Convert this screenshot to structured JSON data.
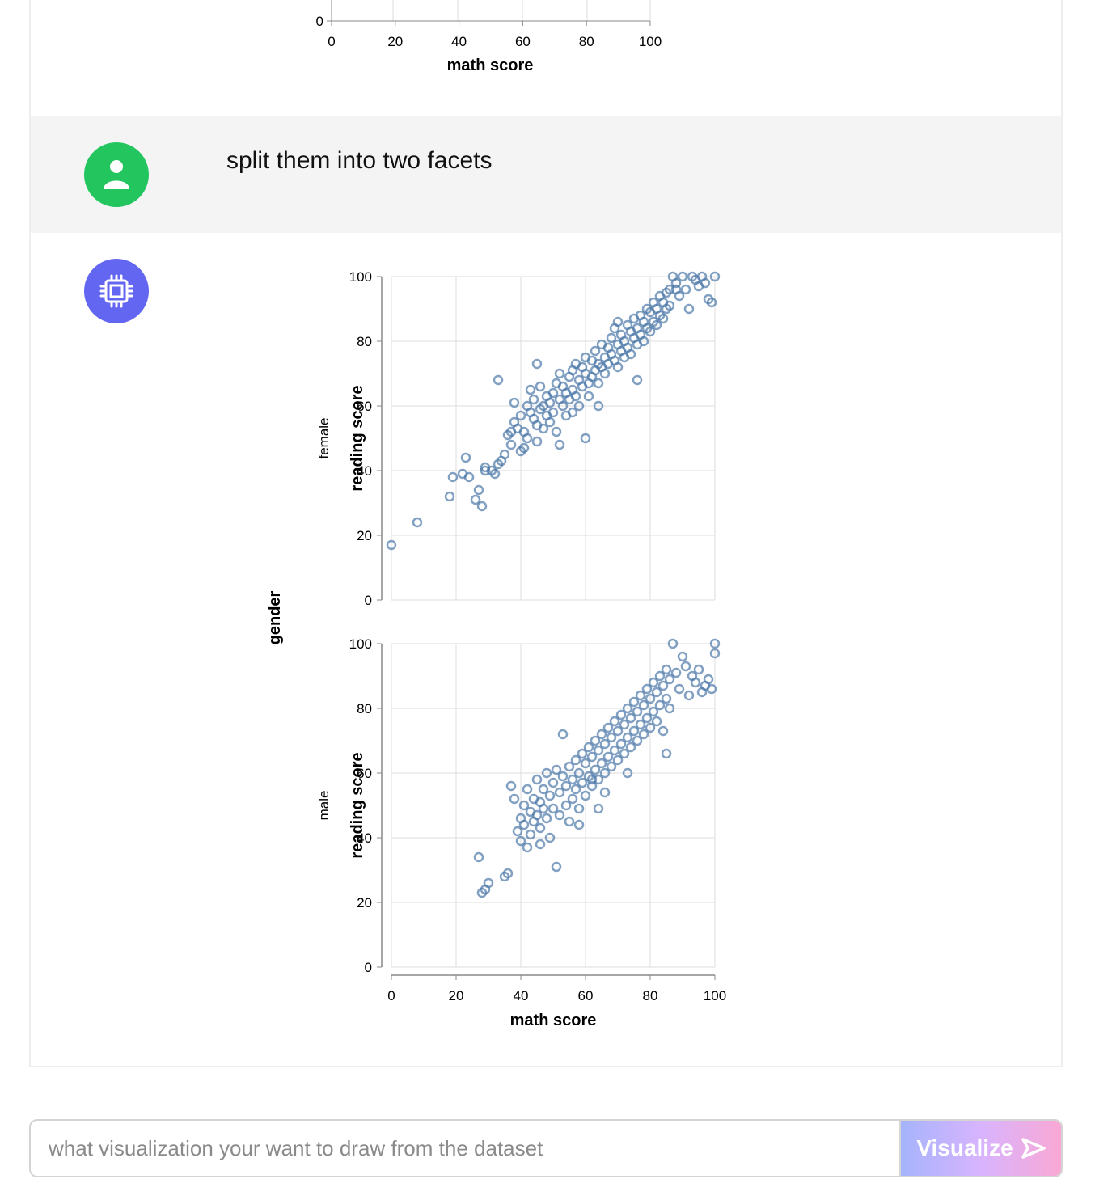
{
  "previous_chart": {
    "y_tick": "0",
    "x_ticks": [
      "0",
      "20",
      "40",
      "60",
      "80",
      "100"
    ],
    "x_label": "math score"
  },
  "user_message": {
    "text": "split them into two facets"
  },
  "chart_data": {
    "type": "scatter",
    "facet_label": "gender",
    "x_label": "math score",
    "y_label": "reading score",
    "xlim": [
      0,
      100
    ],
    "ylim": [
      0,
      100
    ],
    "x_ticks": [
      0,
      20,
      40,
      60,
      80,
      100
    ],
    "y_ticks": [
      0,
      20,
      40,
      60,
      80,
      100
    ],
    "grid": true,
    "mark_color": "#4c78a8",
    "facets": [
      {
        "name": "female",
        "points": [
          [
            0,
            17
          ],
          [
            8,
            24
          ],
          [
            18,
            32
          ],
          [
            19,
            38
          ],
          [
            22,
            39
          ],
          [
            23,
            44
          ],
          [
            24,
            38
          ],
          [
            26,
            31
          ],
          [
            27,
            34
          ],
          [
            28,
            29
          ],
          [
            29,
            40
          ],
          [
            29,
            41
          ],
          [
            31,
            40
          ],
          [
            32,
            39
          ],
          [
            33,
            42
          ],
          [
            34,
            43
          ],
          [
            35,
            45
          ],
          [
            36,
            51
          ],
          [
            37,
            48
          ],
          [
            37,
            52
          ],
          [
            38,
            61
          ],
          [
            38,
            55
          ],
          [
            39,
            53
          ],
          [
            40,
            57
          ],
          [
            40,
            46
          ],
          [
            41,
            52
          ],
          [
            41,
            47
          ],
          [
            42,
            60
          ],
          [
            42,
            50
          ],
          [
            43,
            58
          ],
          [
            43,
            65
          ],
          [
            44,
            56
          ],
          [
            44,
            62
          ],
          [
            45,
            49
          ],
          [
            45,
            54
          ],
          [
            46,
            59
          ],
          [
            46,
            66
          ],
          [
            47,
            60
          ],
          [
            47,
            53
          ],
          [
            48,
            63
          ],
          [
            48,
            57
          ],
          [
            49,
            61
          ],
          [
            49,
            55
          ],
          [
            50,
            64
          ],
          [
            50,
            58
          ],
          [
            51,
            67
          ],
          [
            51,
            52
          ],
          [
            52,
            62
          ],
          [
            52,
            70
          ],
          [
            53,
            60
          ],
          [
            53,
            66
          ],
          [
            54,
            64
          ],
          [
            54,
            57
          ],
          [
            55,
            69
          ],
          [
            55,
            62
          ],
          [
            56,
            71
          ],
          [
            56,
            65
          ],
          [
            57,
            63
          ],
          [
            57,
            73
          ],
          [
            58,
            68
          ],
          [
            58,
            60
          ],
          [
            59,
            72
          ],
          [
            59,
            66
          ],
          [
            60,
            70
          ],
          [
            60,
            75
          ],
          [
            61,
            67
          ],
          [
            61,
            63
          ],
          [
            62,
            74
          ],
          [
            62,
            69
          ],
          [
            63,
            77
          ],
          [
            63,
            71
          ],
          [
            64,
            73
          ],
          [
            64,
            67
          ],
          [
            65,
            79
          ],
          [
            65,
            72
          ],
          [
            66,
            75
          ],
          [
            66,
            70
          ],
          [
            67,
            78
          ],
          [
            67,
            73
          ],
          [
            68,
            81
          ],
          [
            68,
            76
          ],
          [
            69,
            74
          ],
          [
            69,
            84
          ],
          [
            70,
            79
          ],
          [
            70,
            72
          ],
          [
            71,
            82
          ],
          [
            71,
            77
          ],
          [
            72,
            80
          ],
          [
            72,
            75
          ],
          [
            73,
            85
          ],
          [
            73,
            78
          ],
          [
            74,
            83
          ],
          [
            74,
            76
          ],
          [
            75,
            87
          ],
          [
            75,
            81
          ],
          [
            76,
            84
          ],
          [
            76,
            79
          ],
          [
            77,
            88
          ],
          [
            77,
            82
          ],
          [
            78,
            86
          ],
          [
            78,
            80
          ],
          [
            79,
            90
          ],
          [
            79,
            84
          ],
          [
            80,
            89
          ],
          [
            80,
            83
          ],
          [
            81,
            92
          ],
          [
            81,
            86
          ],
          [
            82,
            90
          ],
          [
            82,
            85
          ],
          [
            83,
            94
          ],
          [
            83,
            88
          ],
          [
            84,
            92
          ],
          [
            84,
            87
          ],
          [
            85,
            95
          ],
          [
            85,
            90
          ],
          [
            86,
            96
          ],
          [
            86,
            91
          ],
          [
            87,
            100
          ],
          [
            88,
            98
          ],
          [
            89,
            94
          ],
          [
            90,
            100
          ],
          [
            91,
            96
          ],
          [
            92,
            90
          ],
          [
            93,
            100
          ],
          [
            94,
            99
          ],
          [
            95,
            97
          ],
          [
            96,
            100
          ],
          [
            97,
            98
          ],
          [
            98,
            93
          ],
          [
            99,
            92
          ],
          [
            100,
            100
          ],
          [
            33,
            68
          ],
          [
            45,
            73
          ],
          [
            56,
            58
          ],
          [
            60,
            50
          ],
          [
            70,
            86
          ],
          [
            52,
            48
          ],
          [
            64,
            60
          ],
          [
            76,
            68
          ],
          [
            88,
            96
          ]
        ]
      },
      {
        "name": "male",
        "points": [
          [
            27,
            34
          ],
          [
            28,
            23
          ],
          [
            29,
            24
          ],
          [
            30,
            26
          ],
          [
            35,
            28
          ],
          [
            36,
            29
          ],
          [
            37,
            56
          ],
          [
            38,
            52
          ],
          [
            39,
            42
          ],
          [
            40,
            46
          ],
          [
            40,
            39
          ],
          [
            41,
            50
          ],
          [
            41,
            44
          ],
          [
            42,
            37
          ],
          [
            42,
            55
          ],
          [
            43,
            48
          ],
          [
            43,
            41
          ],
          [
            44,
            52
          ],
          [
            44,
            45
          ],
          [
            45,
            58
          ],
          [
            45,
            47
          ],
          [
            46,
            51
          ],
          [
            46,
            43
          ],
          [
            47,
            55
          ],
          [
            47,
            49
          ],
          [
            48,
            60
          ],
          [
            48,
            46
          ],
          [
            49,
            53
          ],
          [
            49,
            40
          ],
          [
            50,
            57
          ],
          [
            50,
            49
          ],
          [
            51,
            31
          ],
          [
            51,
            61
          ],
          [
            52,
            54
          ],
          [
            52,
            47
          ],
          [
            53,
            59
          ],
          [
            53,
            72
          ],
          [
            54,
            56
          ],
          [
            54,
            50
          ],
          [
            55,
            62
          ],
          [
            55,
            45
          ],
          [
            56,
            58
          ],
          [
            56,
            52
          ],
          [
            57,
            64
          ],
          [
            57,
            55
          ],
          [
            58,
            60
          ],
          [
            58,
            49
          ],
          [
            59,
            66
          ],
          [
            59,
            57
          ],
          [
            60,
            63
          ],
          [
            60,
            53
          ],
          [
            61,
            68
          ],
          [
            61,
            59
          ],
          [
            62,
            65
          ],
          [
            62,
            56
          ],
          [
            63,
            70
          ],
          [
            63,
            61
          ],
          [
            64,
            67
          ],
          [
            64,
            58
          ],
          [
            65,
            72
          ],
          [
            65,
            63
          ],
          [
            66,
            69
          ],
          [
            66,
            60
          ],
          [
            67,
            74
          ],
          [
            67,
            65
          ],
          [
            68,
            71
          ],
          [
            68,
            62
          ],
          [
            69,
            76
          ],
          [
            69,
            67
          ],
          [
            70,
            73
          ],
          [
            70,
            64
          ],
          [
            71,
            78
          ],
          [
            71,
            69
          ],
          [
            72,
            75
          ],
          [
            72,
            66
          ],
          [
            73,
            80
          ],
          [
            73,
            71
          ],
          [
            74,
            77
          ],
          [
            74,
            68
          ],
          [
            75,
            82
          ],
          [
            75,
            73
          ],
          [
            76,
            79
          ],
          [
            76,
            70
          ],
          [
            77,
            84
          ],
          [
            77,
            75
          ],
          [
            78,
            81
          ],
          [
            78,
            72
          ],
          [
            79,
            86
          ],
          [
            79,
            77
          ],
          [
            80,
            83
          ],
          [
            80,
            74
          ],
          [
            81,
            88
          ],
          [
            81,
            79
          ],
          [
            82,
            85
          ],
          [
            82,
            76
          ],
          [
            83,
            90
          ],
          [
            83,
            81
          ],
          [
            84,
            87
          ],
          [
            84,
            73
          ],
          [
            85,
            92
          ],
          [
            85,
            83
          ],
          [
            86,
            89
          ],
          [
            86,
            80
          ],
          [
            87,
            100
          ],
          [
            88,
            91
          ],
          [
            89,
            86
          ],
          [
            90,
            96
          ],
          [
            91,
            93
          ],
          [
            92,
            84
          ],
          [
            93,
            90
          ],
          [
            94,
            88
          ],
          [
            95,
            92
          ],
          [
            96,
            85
          ],
          [
            97,
            87
          ],
          [
            98,
            89
          ],
          [
            99,
            86
          ],
          [
            100,
            100
          ],
          [
            100,
            97
          ],
          [
            85,
            66
          ],
          [
            64,
            49
          ],
          [
            58,
            44
          ],
          [
            66,
            54
          ],
          [
            46,
            38
          ],
          [
            62,
            58
          ],
          [
            73,
            60
          ]
        ]
      }
    ]
  },
  "input": {
    "placeholder": "what visualization your want to draw from the dataset",
    "value": ""
  },
  "visualize_button": {
    "label": "Visualize"
  }
}
